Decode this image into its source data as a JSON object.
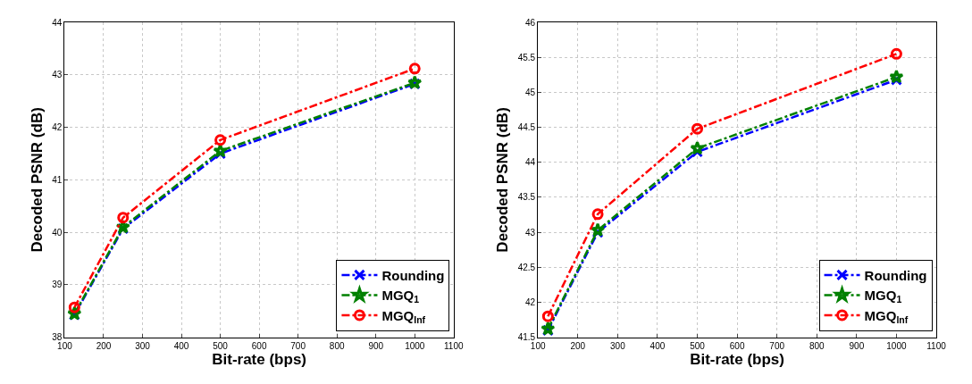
{
  "chart_data": [
    {
      "type": "line",
      "xlabel": "Bit-rate (bps)",
      "ylabel": "Decoded PSNR (dB)",
      "x": [
        125,
        250,
        500,
        1000
      ],
      "xlim": [
        100,
        1100
      ],
      "xticks": [
        100,
        200,
        300,
        400,
        500,
        600,
        700,
        800,
        900,
        1000,
        1100
      ],
      "ylim": [
        38,
        44
      ],
      "yticks": [
        38,
        39,
        40,
        41,
        42,
        43,
        44
      ],
      "grid": true,
      "legend": "bottom right",
      "line_style": "dashed",
      "series": [
        {
          "name": "Rounding",
          "color": "#0000ff",
          "marker": "cross",
          "values": [
            38.43,
            40.07,
            41.5,
            42.83
          ]
        },
        {
          "name": "MGQ$_{1}$",
          "color": "#008000",
          "marker": "star",
          "values": [
            38.45,
            40.1,
            41.55,
            42.85
          ]
        },
        {
          "name": "MGQ$_{Inf}$",
          "color": "#ff0000",
          "marker": "circle",
          "values": [
            38.57,
            40.28,
            41.76,
            43.12
          ]
        }
      ]
    },
    {
      "type": "line",
      "xlabel": "Bit-rate (bps)",
      "ylabel": "Decoded PSNR (dB)",
      "x": [
        125,
        250,
        500,
        1000
      ],
      "xlim": [
        100,
        1100
      ],
      "xticks": [
        100,
        200,
        300,
        400,
        500,
        600,
        700,
        800,
        900,
        1000,
        1100
      ],
      "ylim": [
        41.5,
        46
      ],
      "yticks": [
        41.5,
        42,
        42.5,
        43,
        43.5,
        44,
        44.5,
        45,
        45.5,
        46
      ],
      "grid": true,
      "legend": "bottom right",
      "line_style": "dashed",
      "series": [
        {
          "name": "Rounding",
          "color": "#0000ff",
          "marker": "cross",
          "values": [
            41.6,
            43.0,
            44.15,
            45.18
          ]
        },
        {
          "name": "MGQ$_{1}$",
          "color": "#008000",
          "marker": "star",
          "values": [
            41.62,
            43.03,
            44.2,
            45.22
          ]
        },
        {
          "name": "MGQ$_{Inf}$",
          "color": "#ff0000",
          "marker": "circle",
          "values": [
            41.8,
            43.26,
            44.48,
            45.55
          ]
        }
      ]
    }
  ]
}
